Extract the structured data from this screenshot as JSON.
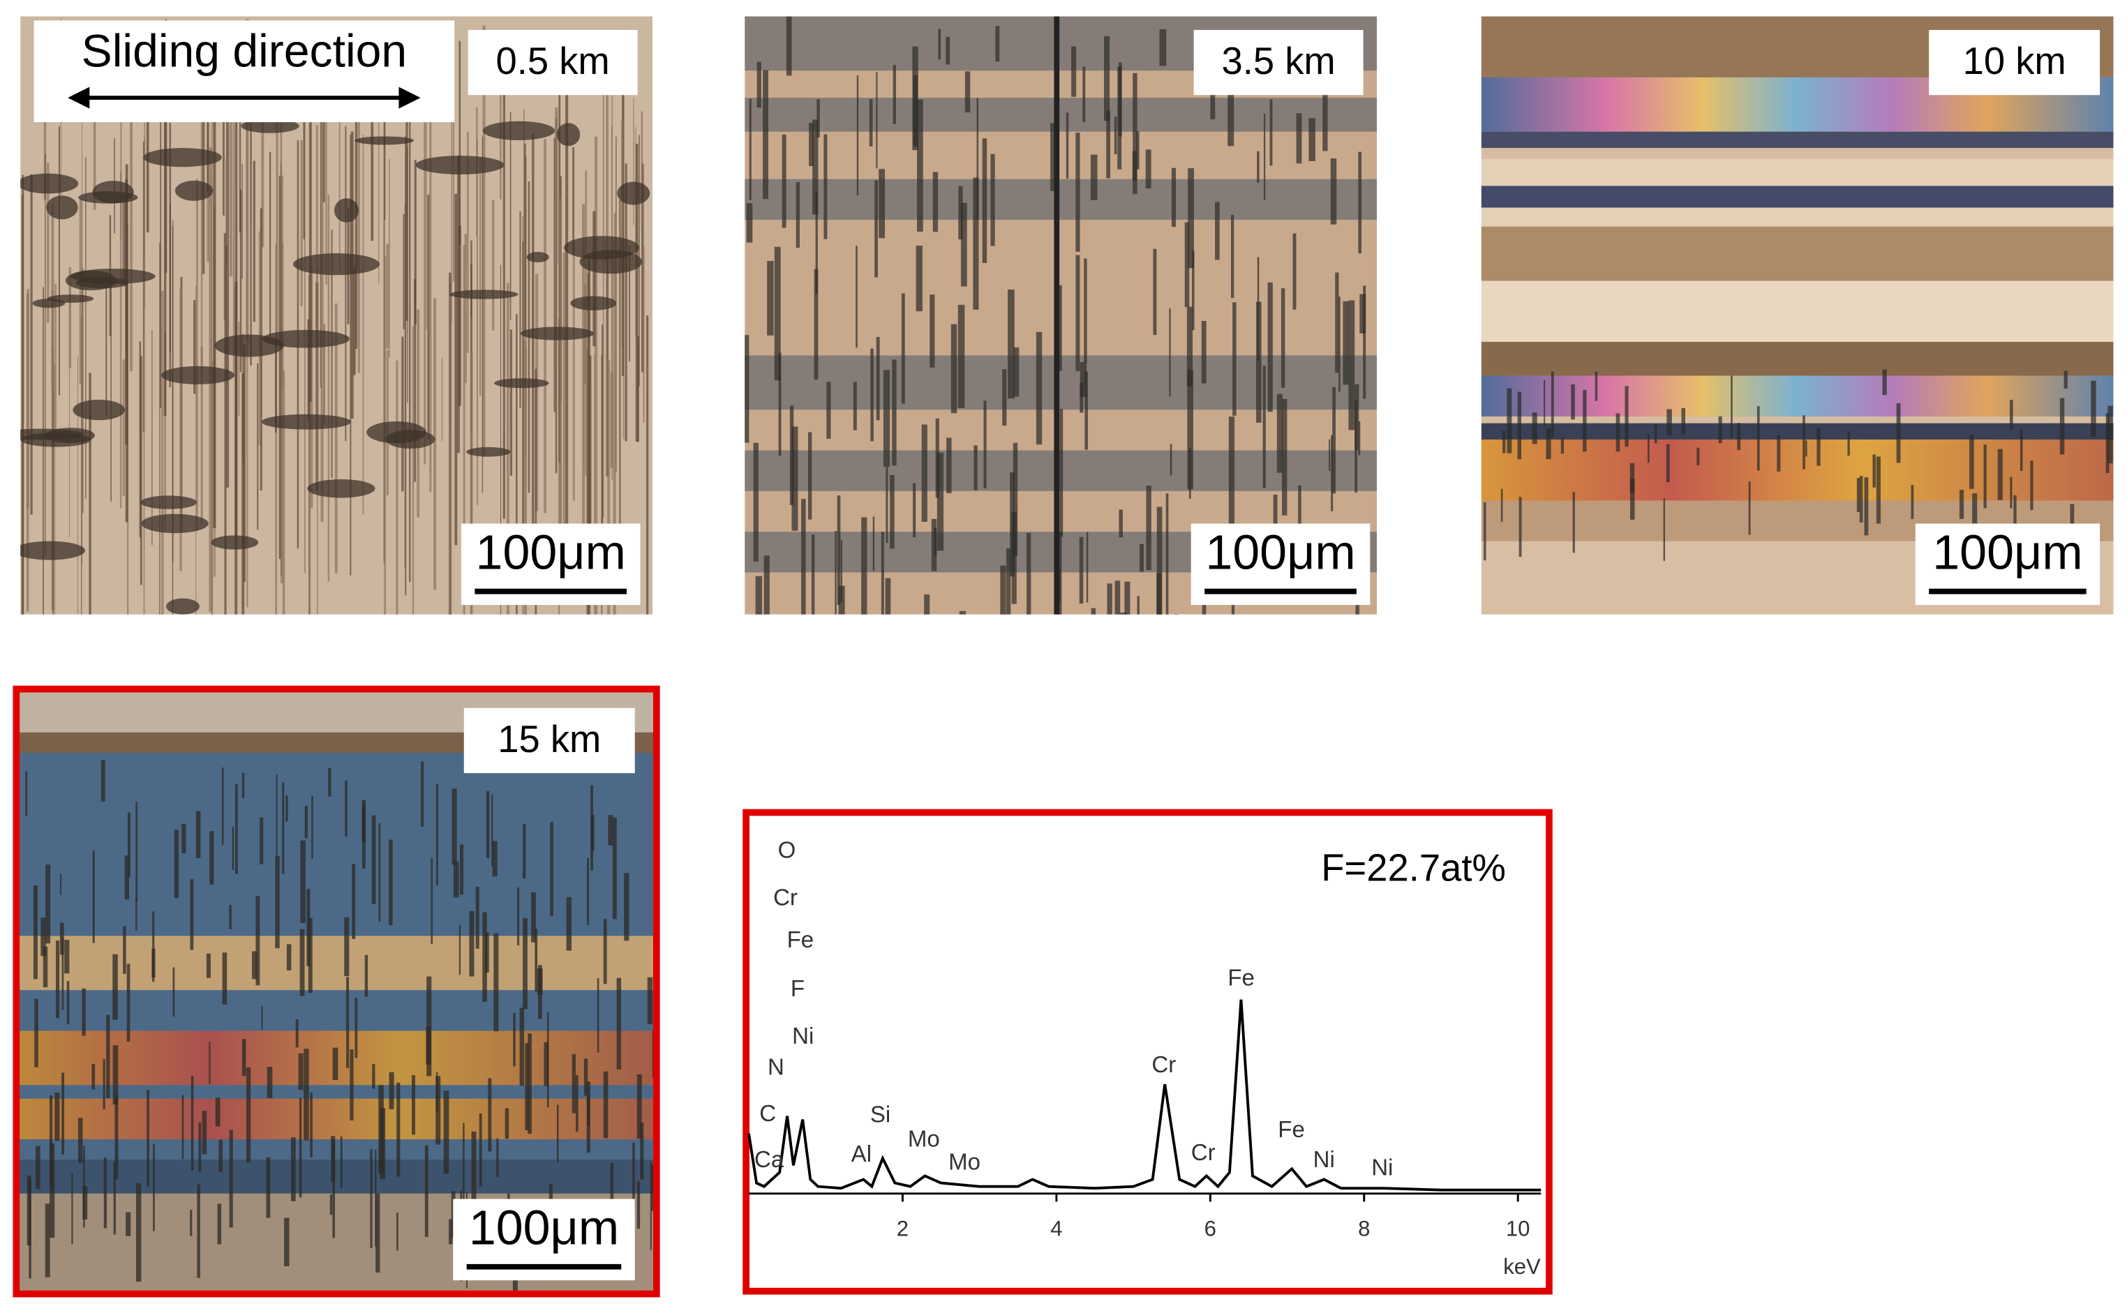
{
  "sliding_direction": "Sliding direction",
  "panels": [
    {
      "distance": "0.5 km",
      "scale_bar": "100μm"
    },
    {
      "distance": "3.5 km",
      "scale_bar": "100μm"
    },
    {
      "distance": "10 km",
      "scale_bar": "100μm"
    },
    {
      "distance": "15 km",
      "scale_bar": "100μm"
    }
  ],
  "chart_data": {
    "type": "line",
    "annotation": "F=22.7at%",
    "xlabel": "keV",
    "color": "#000000",
    "x": [
      0,
      0.1,
      0.2,
      0.3,
      0.4,
      0.5,
      0.58,
      0.7,
      0.8,
      0.9,
      1.2,
      1.49,
      1.6,
      1.74,
      1.9,
      2.1,
      2.29,
      2.5,
      3.0,
      3.5,
      3.69,
      3.9,
      4.5,
      5.0,
      5.25,
      5.41,
      5.6,
      5.8,
      5.95,
      6.1,
      6.25,
      6.4,
      6.55,
      6.8,
      7.06,
      7.25,
      7.48,
      7.7,
      8.26,
      9,
      10.3
    ],
    "values": [
      17,
      3,
      2,
      4,
      6,
      22,
      8,
      21,
      4,
      2,
      1.5,
      4,
      2,
      10,
      3,
      2,
      5,
      3,
      2,
      2,
      4,
      2,
      1.5,
      2,
      4,
      31,
      4,
      2,
      5,
      2,
      6,
      55,
      5,
      2,
      7,
      2,
      4,
      1.5,
      1.5,
      1,
      1
    ],
    "xlim": [
      0,
      10.3
    ],
    "ylim": [
      0,
      100
    ],
    "xticks": [
      2,
      4,
      6,
      8,
      10
    ],
    "peak_labels": [
      "O",
      "Cr",
      "Fe",
      "F",
      "Ni",
      "N",
      "C",
      "Ca",
      "Al",
      "Si",
      "Mo",
      "Mo",
      "Cr",
      "Cr",
      "Fe",
      "Fe",
      "Ni",
      "Ni"
    ]
  }
}
